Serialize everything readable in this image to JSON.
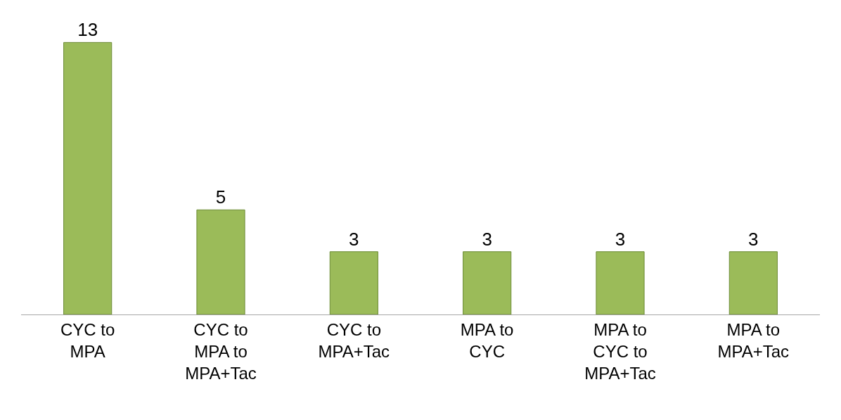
{
  "chart_data": {
    "type": "bar",
    "categories": [
      "CYC to MPA",
      "CYC to MPA to MPA+Tac",
      "CYC to MPA+Tac",
      "MPA to CYC",
      "MPA to CYC to MPA+Tac",
      "MPA to MPA+Tac"
    ],
    "values": [
      13,
      5,
      3,
      3,
      3,
      3
    ],
    "color": "#9bbb59",
    "data_labels": true
  }
}
